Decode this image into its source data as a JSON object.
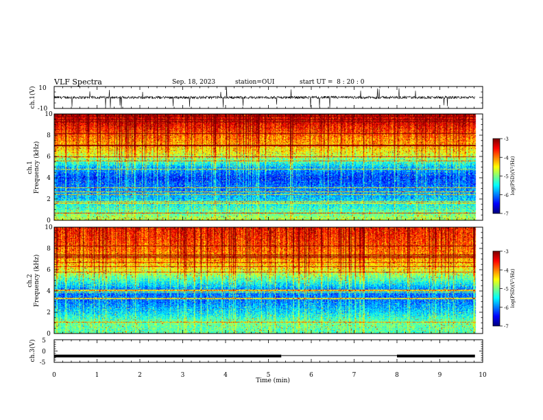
{
  "header": {
    "title": "VLF Spectra",
    "date": "Sep. 18, 2023",
    "station": "station=OUI",
    "start_ut": "start UT =  8 : 20 : 0"
  },
  "chart_data": [
    {
      "type": "line",
      "id": "ch1-waveform",
      "ylabel": "ch.1(V)",
      "ylim": [
        -10,
        10
      ],
      "yticks": [
        "10",
        "-10"
      ],
      "xlim": [
        0,
        10
      ],
      "data_end_min": 9.82,
      "baseline": 0,
      "note_values": "dense noisy waveform around 0 V with sparse negative spikes"
    },
    {
      "type": "heatmap",
      "id": "ch1-spectrogram",
      "ylabel": "ch.1\nFrequency (kHz)",
      "ylabel_lines": [
        "ch.1",
        "Frequency (kHz)"
      ],
      "ylim": [
        0,
        10
      ],
      "yticks": [
        "0",
        "2",
        "4",
        "6",
        "8",
        "10"
      ],
      "xlim": [
        0,
        10
      ],
      "colorbar": {
        "label": "log(PSD)(V²/Hz)",
        "range": [
          -7,
          -3
        ],
        "ticks": [
          "-3",
          "-4",
          "-5",
          "-6",
          "-7"
        ]
      },
      "profile": [
        {
          "f": 0,
          "v": -4.9
        },
        {
          "f": 1,
          "v": -5.4
        },
        {
          "f": 2,
          "v": -5.9
        },
        {
          "f": 3,
          "v": -6.2
        },
        {
          "f": 4,
          "v": -6.5
        },
        {
          "f": 5,
          "v": -6.0
        },
        {
          "f": 6,
          "v": -5.0
        },
        {
          "f": 7,
          "v": -4.5
        },
        {
          "f": 8,
          "v": -4.2
        },
        {
          "f": 9,
          "v": -3.8
        },
        {
          "f": 10,
          "v": -3.6
        }
      ]
    },
    {
      "type": "heatmap",
      "id": "ch2-spectrogram",
      "ylabel": "ch.2\nFrequency (kHz)",
      "ylabel_lines": [
        "ch.2",
        "Frequency (kHz)"
      ],
      "ylim": [
        0,
        10
      ],
      "yticks": [
        "0",
        "2",
        "4",
        "6",
        "8",
        "10"
      ],
      "xlim": [
        0,
        10
      ],
      "colorbar": {
        "label": "log(PSD)(V²/Hz)",
        "range": [
          -7,
          -3
        ],
        "ticks": [
          "-3",
          "-4",
          "-5",
          "-6",
          "-7"
        ]
      },
      "profile": [
        {
          "f": 0,
          "v": -5.3
        },
        {
          "f": 1,
          "v": -5.2
        },
        {
          "f": 2,
          "v": -5.8
        },
        {
          "f": 3,
          "v": -6.2
        },
        {
          "f": 4,
          "v": -6.3
        },
        {
          "f": 5,
          "v": -5.5
        },
        {
          "f": 6,
          "v": -4.8
        },
        {
          "f": 7,
          "v": -4.4
        },
        {
          "f": 8,
          "v": -4.2
        },
        {
          "f": 9,
          "v": -4.0
        },
        {
          "f": 10,
          "v": -3.9
        }
      ]
    },
    {
      "type": "line",
      "id": "ch3-level",
      "ylabel": "ch.3(V)",
      "ylim": [
        -5,
        5
      ],
      "yticks": [
        "5",
        "0",
        "-5"
      ],
      "xlim": [
        0,
        10
      ],
      "xlabel": "Time (min)",
      "xticks": [
        "0",
        "1",
        "2",
        "3",
        "4",
        "5",
        "6",
        "7",
        "8",
        "9",
        "10"
      ],
      "segments": [
        {
          "x0": 0.0,
          "x1": 5.3,
          "y": -2.2
        },
        {
          "x0": 5.3,
          "x1": 8.0,
          "y": -2.0
        },
        {
          "x0": 8.0,
          "x1": 9.82,
          "y": -2.2
        }
      ]
    }
  ]
}
